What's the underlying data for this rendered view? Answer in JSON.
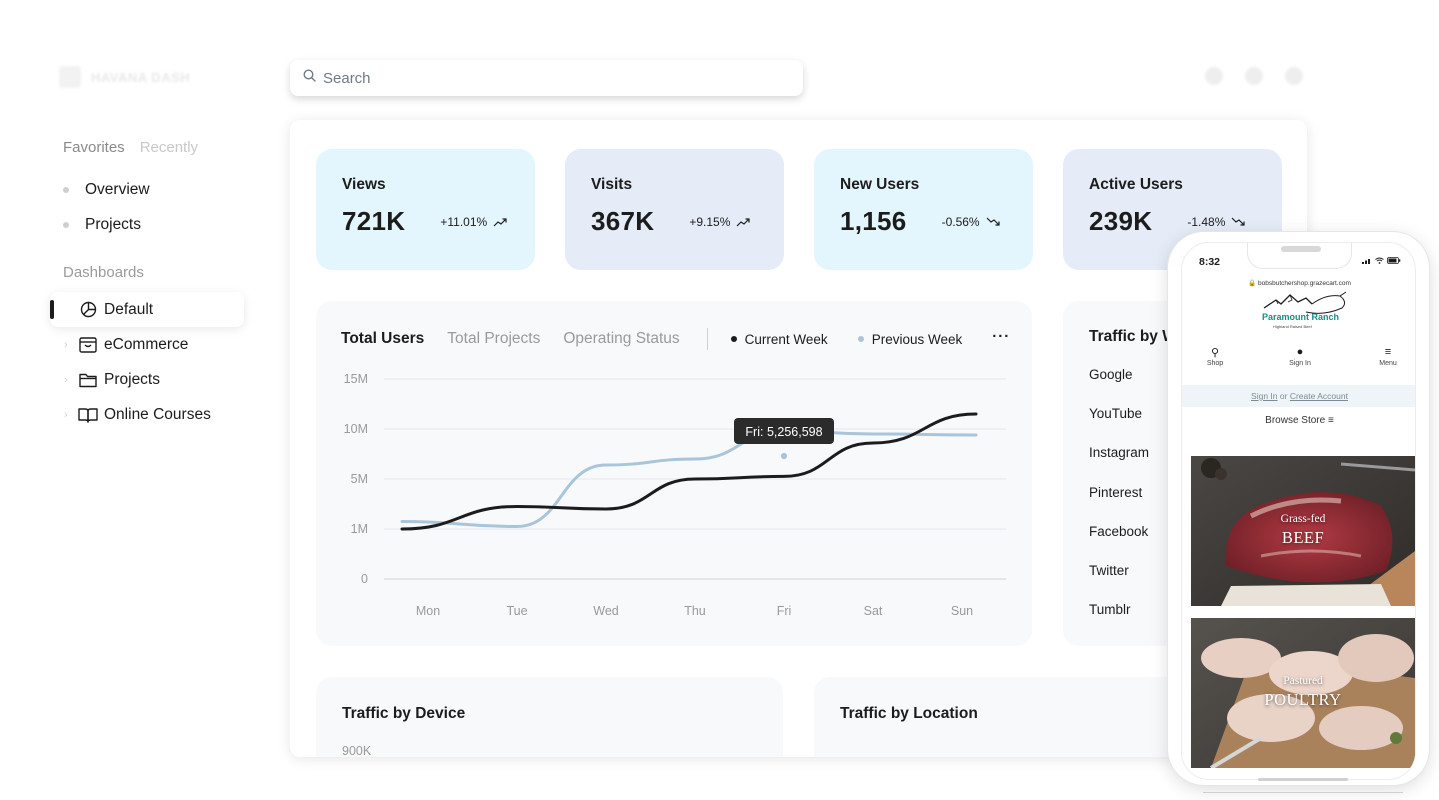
{
  "app": {
    "logo_text": "HAVANA DASH"
  },
  "sidebar": {
    "tabs": [
      {
        "label": "Favorites"
      },
      {
        "label": "Recently"
      }
    ],
    "favorites": [
      {
        "label": "Overview"
      },
      {
        "label": "Projects"
      }
    ],
    "dashboards_heading": "Dashboards",
    "dashboards": [
      {
        "label": "Default",
        "icon": "pie-chart-icon",
        "active": true
      },
      {
        "label": "eCommerce",
        "icon": "storefront-icon"
      },
      {
        "label": "Projects",
        "icon": "folder-icon"
      },
      {
        "label": "Online Courses",
        "icon": "book-icon"
      }
    ]
  },
  "search": {
    "placeholder": "Search"
  },
  "stats": [
    {
      "label": "Views",
      "value": "721K",
      "change": "+11.01%",
      "trend": "up"
    },
    {
      "label": "Visits",
      "value": "367K",
      "change": "+9.15%",
      "trend": "up"
    },
    {
      "label": "New Users",
      "value": "1,156",
      "change": "-0.56%",
      "trend": "down"
    },
    {
      "label": "Active Users",
      "value": "239K",
      "change": "-1.48%",
      "trend": "down"
    }
  ],
  "chart": {
    "tabs": [
      {
        "label": "Total Users"
      },
      {
        "label": "Total Projects"
      },
      {
        "label": "Operating Status"
      }
    ],
    "legend": [
      {
        "label": "Current Week",
        "color": "#1c1c1c"
      },
      {
        "label": "Previous Week",
        "color": "#a8c5da"
      }
    ],
    "more_label": "···",
    "tooltip": "Fri: 5,256,598"
  },
  "chart_data": {
    "type": "line",
    "categories": [
      "Mon",
      "Tue",
      "Wed",
      "Thu",
      "Fri",
      "Sat",
      "Sun"
    ],
    "y_ticks": [
      "15M",
      "10M",
      "5M",
      "1M",
      "0"
    ],
    "series": [
      {
        "name": "Current Week",
        "color": "#1c1c1c",
        "values": [
          1.0,
          2.8,
          2.6,
          5.0,
          5.26,
          8.6,
          11.5
        ]
      },
      {
        "name": "Previous Week",
        "color": "#a8c5da",
        "values": [
          1.6,
          1.2,
          6.4,
          7.0,
          9.8,
          9.5,
          9.4
        ]
      }
    ]
  },
  "traffic_website": {
    "title": "Traffic by Website",
    "items": [
      "Google",
      "YouTube",
      "Instagram",
      "Pinterest",
      "Facebook",
      "Twitter",
      "Tumblr"
    ]
  },
  "traffic_device": {
    "title": "Traffic by Device",
    "axis_top": "900K"
  },
  "traffic_location": {
    "title": "Traffic by Location"
  },
  "phone": {
    "time": "8:32",
    "url": "bobsbutchershop.grazecart.com",
    "brand": "Paramount Ranch",
    "brand_sub": "Highland Raised Beef",
    "nav": [
      {
        "label": "Shop",
        "icon": "search-icon"
      },
      {
        "label": "Sign In",
        "icon": "user-icon"
      },
      {
        "label": "Menu",
        "icon": "menu-icon"
      }
    ],
    "signin_link": "Sign In",
    "signin_or": "or",
    "create_link": "Create Account",
    "browse": "Browse Store ≡",
    "promos": [
      {
        "small": "Grass-fed",
        "big": "BEEF"
      },
      {
        "small": "Pastured",
        "big": "POULTRY"
      }
    ]
  }
}
